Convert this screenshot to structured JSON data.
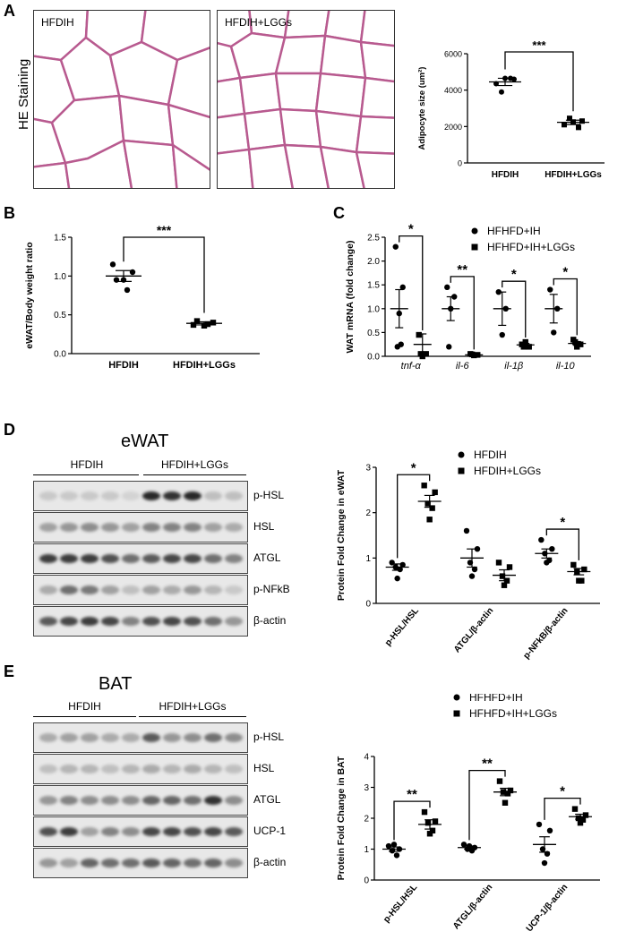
{
  "figure": {
    "panels": {
      "A": {
        "letter": "A",
        "side_label": "HE Staining",
        "image_labels": [
          "HFDIH",
          "HFDIH+LGGs"
        ]
      },
      "B": {
        "letter": "B"
      },
      "C": {
        "letter": "C"
      },
      "D": {
        "letter": "D",
        "title": "eWAT",
        "groups": [
          "HFDIH",
          "HFDIH+LGGs"
        ],
        "rows": [
          "p-HSL",
          "HSL",
          "ATGL",
          "p-NFkB",
          "β-actin"
        ]
      },
      "E": {
        "letter": "E",
        "title": "BAT",
        "groups": [
          "HFDIH",
          "HFDIH+LGGs"
        ],
        "rows": [
          "p-HSL",
          "HSL",
          "ATGL",
          "UCP-1",
          "β-actin"
        ]
      }
    }
  },
  "chart_data": [
    {
      "id": "A-chart",
      "type": "scatter",
      "ylabel": "Adipocyte size (um²)",
      "ylim": [
        0,
        6000
      ],
      "yticks": [
        "0",
        "2000",
        "4000",
        "6000"
      ],
      "categories": [
        "HFDIH",
        "HFDIH+LGGs"
      ],
      "series": [
        {
          "marker": "circle",
          "points": [
            4350,
            4600,
            3900,
            4650,
            4650
          ],
          "mean": 4450,
          "sem": 200
        },
        {
          "marker": "square",
          "points": [
            2100,
            2300,
            2450,
            1950,
            2250
          ],
          "mean": 2230,
          "sem": 120
        }
      ],
      "significance": [
        {
          "from": 0,
          "to": 1,
          "label": "***"
        }
      ]
    },
    {
      "id": "B-chart",
      "type": "scatter",
      "ylabel": "eWAT/Body weight  ratio",
      "ylim": [
        0,
        1.5
      ],
      "yticks": [
        "0.0",
        "0.5",
        "1.0",
        "1.5"
      ],
      "categories": [
        "HFDIH",
        "HFDIH+LGGs"
      ],
      "series": [
        {
          "marker": "circle",
          "points": [
            1.15,
            1.05,
            0.95,
            0.82,
            0.95
          ],
          "mean": 1.0,
          "sem": 0.07
        },
        {
          "marker": "square",
          "points": [
            0.37,
            0.4,
            0.42,
            0.38,
            0.36
          ],
          "mean": 0.39,
          "sem": 0.02
        }
      ],
      "significance": [
        {
          "from": 0,
          "to": 1,
          "label": "***"
        }
      ]
    },
    {
      "id": "C-chart",
      "type": "scatter",
      "ylabel": "WAT mRNA (fold change)",
      "ylim": [
        0,
        2.5
      ],
      "yticks": [
        "0.0",
        "0.5",
        "1.0",
        "1.5",
        "2.0",
        "2.5"
      ],
      "categories": [
        "tnf-α",
        "il-6",
        "il-1β",
        "il-10"
      ],
      "legend": [
        "HFHFD+IH",
        "HFHFD+IH+LGGs"
      ],
      "groups": [
        {
          "a": [
            2.3,
            1.45,
            0.9,
            0.2,
            0.25
          ],
          "am": 1.0,
          "as": 0.4,
          "b": [
            0.45,
            0.05,
            0.0,
            0.05
          ],
          "bm": 0.25,
          "bs": 0.22,
          "sig": "*"
        },
        {
          "a": [
            1.45,
            1.25,
            1.0,
            0.2
          ],
          "am": 1.0,
          "as": 0.25,
          "b": [
            0.05,
            0.03,
            0.02,
            0.04
          ],
          "bm": 0.03,
          "bs": 0.01,
          "sig": "**"
        },
        {
          "a": [
            1.35,
            1.0,
            0.45
          ],
          "am": 1.0,
          "as": 0.35,
          "b": [
            0.25,
            0.2,
            0.3,
            0.2
          ],
          "bm": 0.24,
          "bs": 0.03,
          "sig": "*"
        },
        {
          "a": [
            1.4,
            1.0,
            0.5
          ],
          "am": 1.0,
          "as": 0.3,
          "b": [
            0.35,
            0.25,
            0.2,
            0.3
          ],
          "bm": 0.27,
          "bs": 0.04,
          "sig": "*"
        }
      ]
    },
    {
      "id": "D-chart",
      "type": "scatter",
      "ylabel": "Protein Fold Change in eWAT",
      "ylim": [
        0,
        3
      ],
      "yticks": [
        "0",
        "1",
        "2",
        "3"
      ],
      "categories": [
        "p-HSL/HSL",
        "ATGL/β-actin",
        "p-NFkB/β-actin"
      ],
      "legend": [
        "HFDIH",
        "HFDIH+LGGs"
      ],
      "groups": [
        {
          "a": [
            0.9,
            0.85,
            0.8,
            0.75,
            0.55
          ],
          "am": 0.8,
          "as": 0.07,
          "b": [
            2.6,
            2.45,
            2.2,
            2.1,
            1.85
          ],
          "bm": 2.25,
          "bs": 0.13,
          "sig": "*"
        },
        {
          "a": [
            1.6,
            1.2,
            0.9,
            0.75,
            0.6
          ],
          "am": 1.0,
          "as": 0.2,
          "b": [
            0.9,
            0.8,
            0.6,
            0.5,
            0.4
          ],
          "bm": 0.62,
          "bs": 0.12,
          "sig": ""
        },
        {
          "a": [
            1.4,
            1.2,
            1.1,
            0.95,
            0.9
          ],
          "am": 1.1,
          "as": 0.1,
          "b": [
            0.85,
            0.75,
            0.7,
            0.5,
            0.5
          ],
          "bm": 0.7,
          "bs": 0.07,
          "sig": "*"
        }
      ]
    },
    {
      "id": "E-chart",
      "type": "scatter",
      "ylabel": "Protein Fold Change in BAT",
      "ylim": [
        0,
        4
      ],
      "yticks": [
        "0",
        "1",
        "2",
        "3",
        "4"
      ],
      "categories": [
        "p-HSL/HSL",
        "ATGL/β-actin",
        "UCP-1/β-actin"
      ],
      "legend": [
        "HFHFD+IH",
        "HFHFD+IH+LGGs"
      ],
      "groups": [
        {
          "a": [
            1.1,
            1.0,
            0.95,
            0.8,
            1.15
          ],
          "am": 1.0,
          "as": 0.07,
          "b": [
            2.2,
            1.9,
            1.85,
            1.6,
            1.5
          ],
          "bm": 1.8,
          "bs": 0.15,
          "sig": "**"
        },
        {
          "a": [
            1.15,
            1.05,
            1.0,
            0.95,
            1.1
          ],
          "am": 1.05,
          "as": 0.05,
          "b": [
            3.2,
            2.9,
            2.85,
            2.8,
            2.5
          ],
          "bm": 2.85,
          "bs": 0.12,
          "sig": "**"
        },
        {
          "a": [
            1.8,
            1.6,
            1.0,
            0.85,
            0.55
          ],
          "am": 1.15,
          "as": 0.25,
          "b": [
            2.3,
            2.1,
            2.0,
            1.95,
            1.85
          ],
          "bm": 2.05,
          "bs": 0.08,
          "sig": "*"
        }
      ]
    }
  ]
}
